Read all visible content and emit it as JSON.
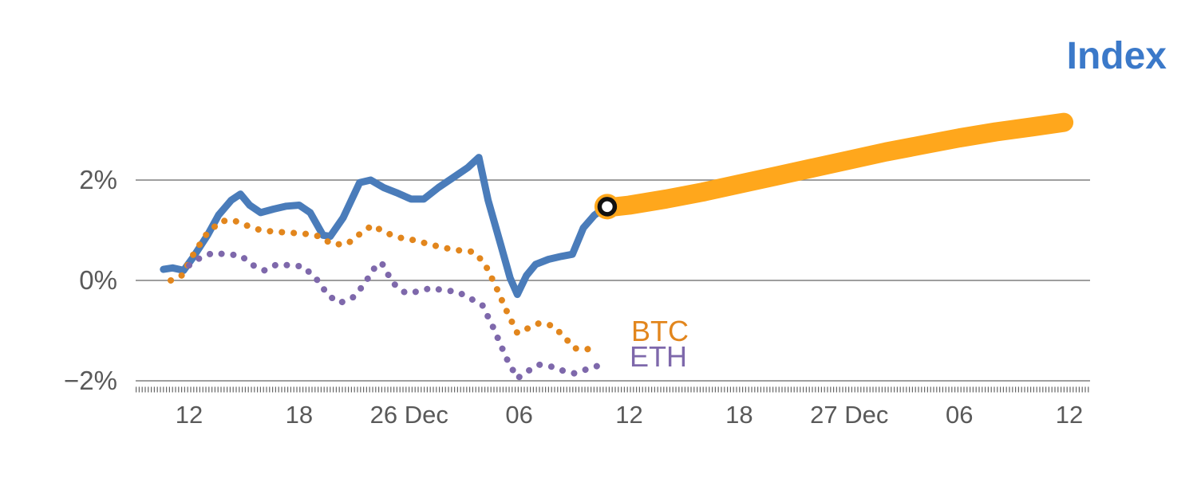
{
  "chart_data": {
    "type": "line",
    "title": "Index",
    "labels": {
      "index": "Index",
      "btc": "BTC",
      "eth": "ETH"
    },
    "colors": {
      "index": "#4a7cba",
      "btc": "#e2861d",
      "eth": "#7e68ab",
      "forecast": "#ffa71c",
      "grid": "#7f7f7f",
      "tick_text": "#595959",
      "title": "#3b79c9",
      "marker_ring": "#111111",
      "marker_center": "#ffffff"
    },
    "xlim_hours": [
      -2,
      49
    ],
    "ylim_percent": [
      -2.6,
      3.6
    ],
    "x_axis": {
      "ticks": [
        {
          "h": 0,
          "label": "12"
        },
        {
          "h": 6,
          "label": "18"
        },
        {
          "h": 12,
          "label": "26 Dec"
        },
        {
          "h": 18,
          "label": "06"
        },
        {
          "h": 24,
          "label": "12"
        },
        {
          "h": 30,
          "label": "18"
        },
        {
          "h": 36,
          "label": "27 Dec"
        },
        {
          "h": 42,
          "label": "06"
        },
        {
          "h": 48,
          "label": "12"
        }
      ]
    },
    "y_axis": {
      "ticks": [
        {
          "v": 2,
          "label": "2%"
        },
        {
          "v": 0,
          "label": "0%"
        },
        {
          "v": -2,
          "label": "−2%"
        }
      ]
    },
    "series": [
      {
        "id": "forecast",
        "name": "Index forecast",
        "style": "solid",
        "width": 24,
        "color_key": "forecast",
        "points": [
          [
            22.8,
            1.45
          ],
          [
            24,
            1.5
          ],
          [
            26,
            1.62
          ],
          [
            28,
            1.76
          ],
          [
            30,
            1.92
          ],
          [
            32,
            2.08
          ],
          [
            34,
            2.24
          ],
          [
            36,
            2.4
          ],
          [
            38,
            2.56
          ],
          [
            40,
            2.7
          ],
          [
            42,
            2.84
          ],
          [
            44,
            2.96
          ],
          [
            46,
            3.06
          ],
          [
            47.7,
            3.15
          ]
        ]
      },
      {
        "id": "index",
        "name": "Index",
        "style": "solid",
        "width": 9,
        "color_key": "index",
        "points": [
          [
            -1.4,
            0.22
          ],
          [
            -0.9,
            0.25
          ],
          [
            -0.3,
            0.2
          ],
          [
            0.2,
            0.45
          ],
          [
            1.0,
            0.9
          ],
          [
            1.6,
            1.3
          ],
          [
            2.3,
            1.6
          ],
          [
            2.8,
            1.72
          ],
          [
            3.3,
            1.5
          ],
          [
            3.9,
            1.35
          ],
          [
            4.6,
            1.42
          ],
          [
            5.3,
            1.48
          ],
          [
            6.0,
            1.5
          ],
          [
            6.6,
            1.35
          ],
          [
            7.3,
            0.9
          ],
          [
            7.7,
            0.88
          ],
          [
            8.4,
            1.25
          ],
          [
            9.3,
            1.95
          ],
          [
            9.9,
            2.0
          ],
          [
            10.6,
            1.85
          ],
          [
            11.3,
            1.75
          ],
          [
            12.1,
            1.62
          ],
          [
            12.8,
            1.62
          ],
          [
            13.6,
            1.85
          ],
          [
            14.4,
            2.05
          ],
          [
            15.2,
            2.25
          ],
          [
            15.8,
            2.45
          ],
          [
            16.3,
            1.6
          ],
          [
            17.0,
            0.7
          ],
          [
            17.5,
            0.05
          ],
          [
            17.9,
            -0.28
          ],
          [
            18.4,
            0.1
          ],
          [
            18.9,
            0.32
          ],
          [
            19.6,
            0.42
          ],
          [
            20.3,
            0.48
          ],
          [
            20.9,
            0.52
          ],
          [
            21.5,
            1.05
          ],
          [
            22.1,
            1.3
          ],
          [
            22.8,
            1.48
          ]
        ]
      },
      {
        "id": "btc",
        "name": "BTC",
        "style": "dotted",
        "width": 8,
        "color_key": "btc",
        "points": [
          [
            -1.0,
            0.0
          ],
          [
            -0.4,
            0.1
          ],
          [
            0.2,
            0.5
          ],
          [
            0.9,
            0.9
          ],
          [
            1.7,
            1.18
          ],
          [
            2.4,
            1.2
          ],
          [
            3.1,
            1.1
          ],
          [
            3.9,
            1.0
          ],
          [
            4.7,
            0.97
          ],
          [
            5.5,
            0.95
          ],
          [
            6.3,
            0.93
          ],
          [
            7.1,
            0.88
          ],
          [
            7.8,
            0.72
          ],
          [
            8.6,
            0.72
          ],
          [
            9.4,
            0.95
          ],
          [
            10.0,
            1.1
          ],
          [
            10.7,
            0.95
          ],
          [
            11.5,
            0.85
          ],
          [
            12.3,
            0.8
          ],
          [
            13.1,
            0.72
          ],
          [
            13.9,
            0.65
          ],
          [
            14.7,
            0.6
          ],
          [
            15.5,
            0.57
          ],
          [
            16.1,
            0.35
          ],
          [
            16.7,
            -0.1
          ],
          [
            17.3,
            -0.6
          ],
          [
            17.9,
            -1.05
          ],
          [
            18.5,
            -0.95
          ],
          [
            19.1,
            -0.85
          ],
          [
            19.8,
            -0.9
          ],
          [
            20.4,
            -1.1
          ],
          [
            21.0,
            -1.35
          ],
          [
            21.6,
            -1.38
          ],
          [
            22.3,
            -1.32
          ]
        ]
      },
      {
        "id": "eth",
        "name": "ETH",
        "style": "dotted",
        "width": 8,
        "color_key": "eth",
        "points": [
          [
            0.0,
            0.3
          ],
          [
            0.6,
            0.45
          ],
          [
            1.3,
            0.55
          ],
          [
            2.0,
            0.52
          ],
          [
            2.8,
            0.5
          ],
          [
            3.5,
            0.3
          ],
          [
            4.1,
            0.2
          ],
          [
            4.8,
            0.32
          ],
          [
            5.5,
            0.3
          ],
          [
            6.2,
            0.28
          ],
          [
            6.9,
            0.05
          ],
          [
            7.6,
            -0.3
          ],
          [
            8.2,
            -0.45
          ],
          [
            8.9,
            -0.35
          ],
          [
            9.5,
            -0.1
          ],
          [
            10.2,
            0.3
          ],
          [
            10.5,
            0.35
          ],
          [
            11.1,
            -0.05
          ],
          [
            11.8,
            -0.25
          ],
          [
            12.5,
            -0.22
          ],
          [
            13.2,
            -0.15
          ],
          [
            13.9,
            -0.2
          ],
          [
            14.6,
            -0.22
          ],
          [
            15.3,
            -0.35
          ],
          [
            16.0,
            -0.5
          ],
          [
            16.6,
            -0.95
          ],
          [
            17.3,
            -1.55
          ],
          [
            17.9,
            -1.95
          ],
          [
            18.5,
            -1.8
          ],
          [
            19.1,
            -1.68
          ],
          [
            19.8,
            -1.72
          ],
          [
            20.4,
            -1.8
          ],
          [
            21.0,
            -1.85
          ],
          [
            21.6,
            -1.78
          ],
          [
            22.3,
            -1.7
          ]
        ]
      }
    ],
    "marker": {
      "h": 22.8,
      "v": 1.47
    }
  }
}
